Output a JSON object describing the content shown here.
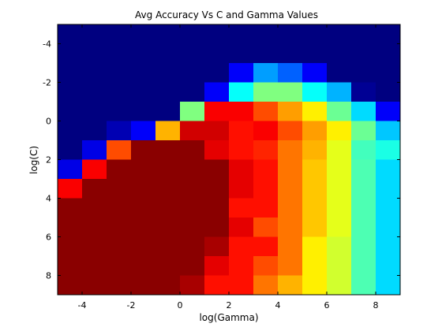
{
  "chart_data": {
    "type": "heatmap",
    "title": "Avg Accuracy Vs C and Gamma Values",
    "xlabel": "log(Gamma)",
    "ylabel": "log(C)",
    "x": [
      -4.5,
      -3.5,
      -2.5,
      -1.5,
      -0.5,
      0.5,
      1.5,
      2.5,
      3.5,
      4.5,
      5.5,
      6.5,
      7.5,
      8.5
    ],
    "y": [
      -4.5,
      -3.5,
      -2.5,
      -1.5,
      -0.5,
      0.5,
      1.5,
      2.5,
      3.5,
      4.5,
      5.5,
      6.5,
      7.5,
      8.5
    ],
    "x_ticks": [
      -4,
      -2,
      0,
      2,
      4,
      6,
      8
    ],
    "y_ticks": [
      -4,
      -2,
      0,
      2,
      4,
      6,
      8
    ],
    "x_tick_labels": [
      "-4",
      "-2",
      "0",
      "2",
      "4",
      "6",
      "8"
    ],
    "y_tick_labels": [
      "-4",
      "-2",
      "0",
      "2",
      "4",
      "6",
      "8"
    ],
    "xlim": [
      -5,
      9
    ],
    "ylim": [
      -5,
      9
    ],
    "y_direction": "reversed",
    "colormap": "jet",
    "color_range": [
      0,
      1
    ],
    "values": [
      [
        0.0,
        0.0,
        0.0,
        0.0,
        0.0,
        0.0,
        0.0,
        0.0,
        0.0,
        0.0,
        0.0,
        0.0,
        0.0,
        0.0
      ],
      [
        0.0,
        0.0,
        0.0,
        0.0,
        0.0,
        0.0,
        0.0,
        0.0,
        0.0,
        0.0,
        0.0,
        0.0,
        0.0,
        0.0
      ],
      [
        0.0,
        0.0,
        0.0,
        0.0,
        0.0,
        0.0,
        0.0,
        0.12,
        0.28,
        0.22,
        0.12,
        0.0,
        0.0,
        0.0
      ],
      [
        0.0,
        0.0,
        0.0,
        0.0,
        0.0,
        0.0,
        0.12,
        0.38,
        0.5,
        0.5,
        0.38,
        0.3,
        0.02,
        0.0
      ],
      [
        0.0,
        0.0,
        0.0,
        0.0,
        0.0,
        0.5,
        0.88,
        0.88,
        0.8,
        0.72,
        0.64,
        0.48,
        0.34,
        0.12
      ],
      [
        0.0,
        0.0,
        0.05,
        0.12,
        0.7,
        0.92,
        0.92,
        0.86,
        0.88,
        0.8,
        0.72,
        0.64,
        0.48,
        0.32
      ],
      [
        0.0,
        0.1,
        0.8,
        0.99,
        0.99,
        0.99,
        0.9,
        0.86,
        0.84,
        0.76,
        0.7,
        0.6,
        0.44,
        0.4
      ],
      [
        0.1,
        0.88,
        0.99,
        0.99,
        0.99,
        0.99,
        0.99,
        0.9,
        0.86,
        0.76,
        0.68,
        0.6,
        0.45,
        0.34
      ],
      [
        0.88,
        0.99,
        0.99,
        0.99,
        0.99,
        0.99,
        0.99,
        0.9,
        0.86,
        0.76,
        0.68,
        0.6,
        0.45,
        0.34
      ],
      [
        0.99,
        0.99,
        0.99,
        0.99,
        0.99,
        0.99,
        0.99,
        0.86,
        0.86,
        0.76,
        0.68,
        0.6,
        0.45,
        0.34
      ],
      [
        0.99,
        0.99,
        0.99,
        0.99,
        0.99,
        0.99,
        0.99,
        0.9,
        0.8,
        0.76,
        0.68,
        0.6,
        0.45,
        0.34
      ],
      [
        0.99,
        0.99,
        0.99,
        0.99,
        0.99,
        0.99,
        0.96,
        0.86,
        0.86,
        0.76,
        0.64,
        0.58,
        0.45,
        0.34
      ],
      [
        0.99,
        0.99,
        0.99,
        0.99,
        0.99,
        0.99,
        0.9,
        0.86,
        0.8,
        0.76,
        0.64,
        0.58,
        0.45,
        0.34
      ],
      [
        0.99,
        0.99,
        0.99,
        0.99,
        0.99,
        0.96,
        0.86,
        0.86,
        0.76,
        0.7,
        0.64,
        0.58,
        0.45,
        0.34
      ]
    ]
  }
}
